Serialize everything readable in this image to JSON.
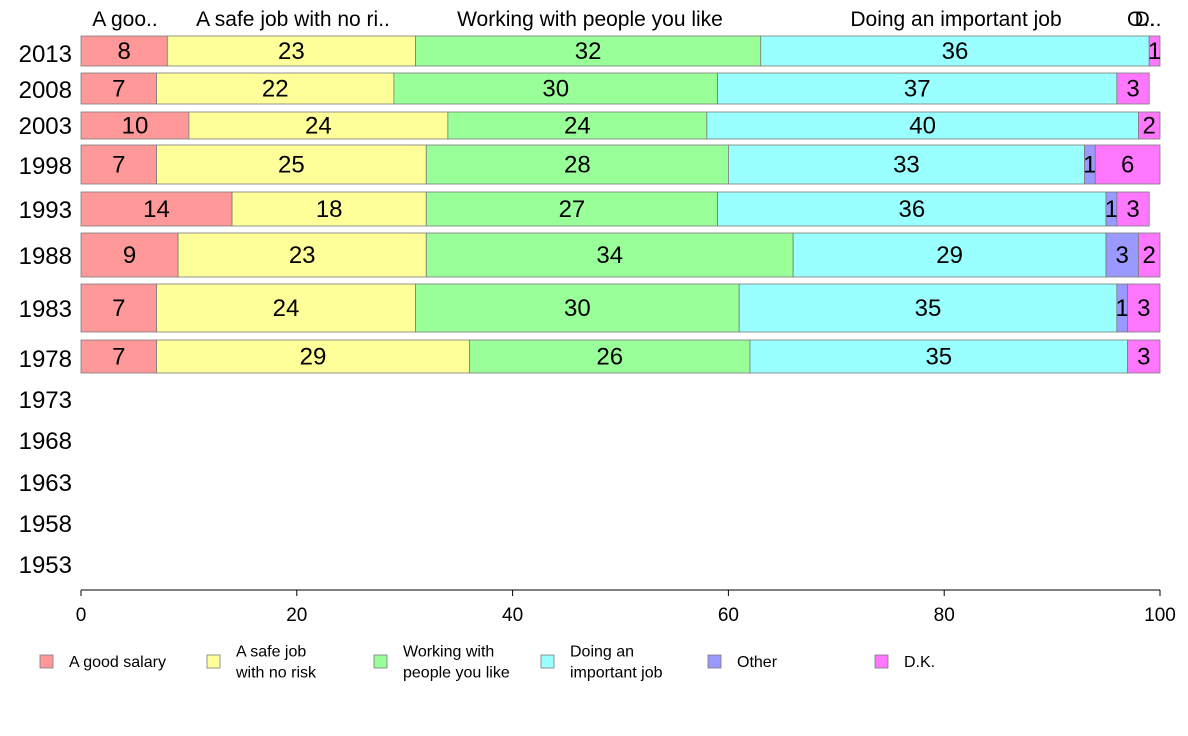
{
  "chart_data": {
    "type": "bar",
    "orientation": "horizontal",
    "stacked": true,
    "title": "",
    "xlabel": "",
    "ylabel": "",
    "xlim": [
      0,
      100
    ],
    "x_ticks": [
      0,
      20,
      40,
      60,
      80,
      100
    ],
    "categories": [
      "2013",
      "2008",
      "2003",
      "1998",
      "1993",
      "1988",
      "1983",
      "1978",
      "1973",
      "1968",
      "1963",
      "1958",
      "1953"
    ],
    "series": [
      {
        "name": "A good salary",
        "header": "A goo..",
        "color": "#ff9999",
        "values": [
          8,
          7,
          10,
          7,
          14,
          9,
          7,
          7,
          null,
          null,
          null,
          null,
          null
        ]
      },
      {
        "name": "A safe job with no risk",
        "header": "A safe job with no ri..",
        "color": "#ffff99",
        "values": [
          23,
          22,
          24,
          25,
          18,
          23,
          24,
          29,
          null,
          null,
          null,
          null,
          null
        ]
      },
      {
        "name": "Working with people you like",
        "header": "Working with people you like",
        "color": "#99ff99",
        "values": [
          32,
          30,
          24,
          28,
          27,
          34,
          30,
          26,
          null,
          null,
          null,
          null,
          null
        ]
      },
      {
        "name": "Doing an important job",
        "header": "Doing an important job",
        "color": "#99ffff",
        "values": [
          36,
          37,
          40,
          33,
          36,
          29,
          35,
          35,
          null,
          null,
          null,
          null,
          null
        ]
      },
      {
        "name": "Other",
        "header": "O..",
        "color": "#9999ff",
        "values": [
          0,
          0,
          0,
          1,
          1,
          3,
          1,
          0,
          null,
          null,
          null,
          null,
          null
        ]
      },
      {
        "name": "D.K.",
        "header": "D..",
        "color": "#ff77ff",
        "values": [
          1,
          3,
          2,
          6,
          3,
          2,
          3,
          3,
          null,
          null,
          null,
          null,
          null
        ]
      }
    ],
    "legend": {
      "placement": "bottom",
      "entries": [
        {
          "lines": [
            "A good salary"
          ],
          "color": "#ff9999"
        },
        {
          "lines": [
            "A safe job",
            "with no risk"
          ],
          "color": "#ffff99"
        },
        {
          "lines": [
            "Working with",
            "people you like"
          ],
          "color": "#99ff99"
        },
        {
          "lines": [
            "Doing an",
            "important job"
          ],
          "color": "#99ffff"
        },
        {
          "lines": [
            "Other"
          ],
          "color": "#9999ff"
        },
        {
          "lines": [
            "D.K."
          ],
          "color": "#ff77ff"
        }
      ]
    },
    "grid": false
  }
}
